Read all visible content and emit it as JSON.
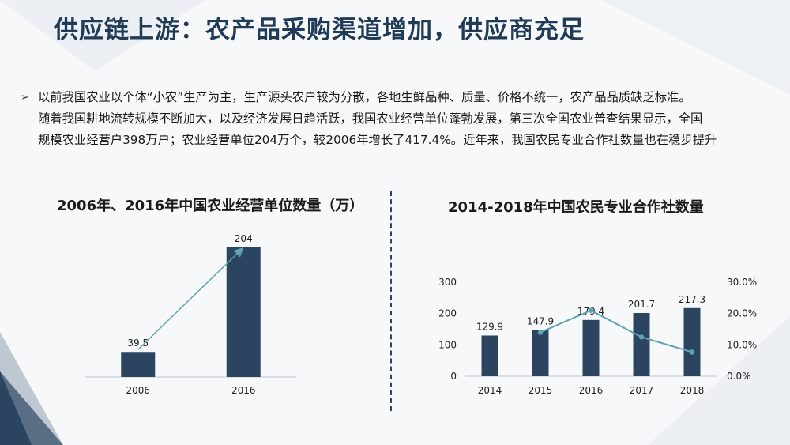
{
  "title": "供应链上游：农产品采购渠道增加，供应商充足",
  "intro": {
    "bullet": "➢",
    "lines": [
      "以前我国农业以个体“小农”生产为主，生产源头农户较为分散，各地生鲜品种、质量、价格不统一，农产品品质缺乏标准。",
      "随着我国耕地流转规模不断加大，以及经济发展日趋活跃，我国农业经营单位蓬勃发展，第三次全国农业普查结果显示，全国",
      "规模农业经营户398万户；农业经营单位204万个，较2006年增长了417.4%。近年来，我国农民专业合作社数量也在稳步提升"
    ]
  },
  "colors": {
    "bar": "#2b4560",
    "line": "#5fa3b5",
    "title": "#1f3b57",
    "divider": "#2a4560"
  },
  "chart_data": [
    {
      "type": "bar",
      "title": "2006年、2016年中国农业经营单位数量（万）",
      "categories": [
        "2006",
        "2016"
      ],
      "values": [
        39.5,
        204
      ],
      "value_labels": [
        "39.5",
        "204"
      ],
      "ylim": [
        0,
        204
      ],
      "trend_arrow": true,
      "grid": false
    },
    {
      "type": "bar",
      "title": "2014-2018年中国农民专业合作社数量",
      "categories": [
        "2014",
        "2015",
        "2016",
        "2017",
        "2018"
      ],
      "values": [
        129.9,
        147.9,
        179.4,
        201.7,
        217.3
      ],
      "value_labels": [
        "129.9",
        "147.9",
        "179.4",
        "201.7",
        "217.3"
      ],
      "ylim": [
        0,
        300
      ],
      "yticks": [
        "0",
        "100",
        "200",
        "300"
      ],
      "y2lim": [
        0,
        0.3
      ],
      "y2ticks": [
        "0.0%",
        "10.0%",
        "20.0%",
        "30.0%"
      ],
      "line_series": {
        "values": [
          null,
          0.14,
          0.21,
          0.125,
          0.077
        ]
      },
      "grid": false
    }
  ]
}
